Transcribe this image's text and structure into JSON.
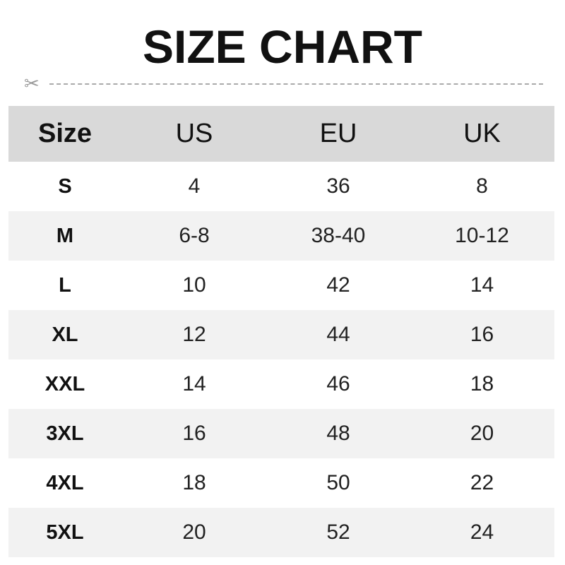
{
  "title": "SIZE CHART",
  "cut_icon": "scissors-icon",
  "colors": {
    "header_bg": "#d9d9d9",
    "alt_row_bg": "#f2f2f2",
    "dash": "#aaaaaa"
  },
  "table": {
    "headers": [
      "Size",
      "US",
      "EU",
      "UK"
    ],
    "rows": [
      [
        "S",
        "4",
        "36",
        "8"
      ],
      [
        "M",
        "6-8",
        "38-40",
        "10-12"
      ],
      [
        "L",
        "10",
        "42",
        "14"
      ],
      [
        "XL",
        "12",
        "44",
        "16"
      ],
      [
        "XXL",
        "14",
        "46",
        "18"
      ],
      [
        "3XL",
        "16",
        "48",
        "20"
      ],
      [
        "4XL",
        "18",
        "50",
        "22"
      ],
      [
        "5XL",
        "20",
        "52",
        "24"
      ]
    ]
  }
}
